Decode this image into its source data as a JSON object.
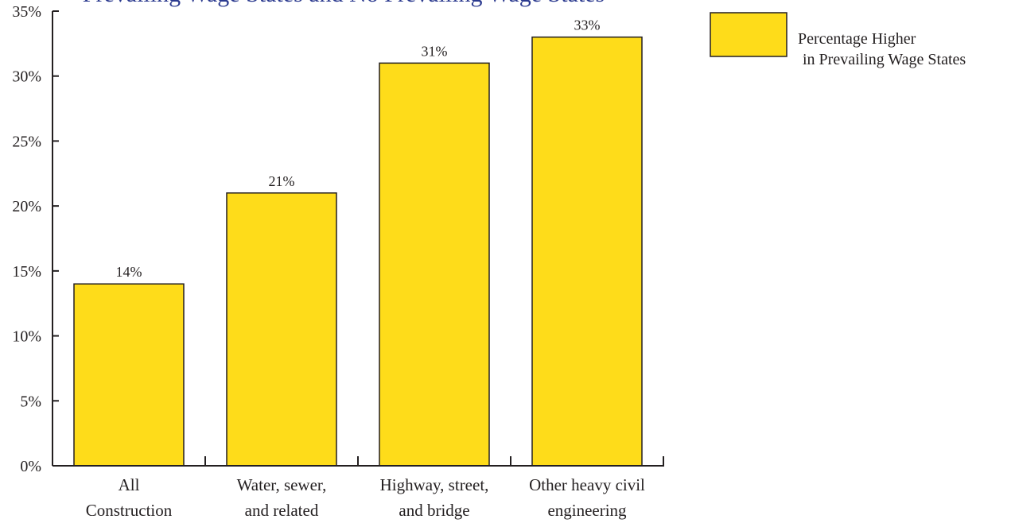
{
  "chart_data": {
    "type": "bar",
    "title": "Prevailing Wage States and No Prevailing Wage States",
    "categories": [
      [
        "All",
        "Construction"
      ],
      [
        "Water, sewer,",
        "and related"
      ],
      [
        "Highway, street,",
        "and bridge"
      ],
      [
        "Other heavy civil",
        "engineering"
      ]
    ],
    "series": [
      {
        "name": "Percentage Higher in Prevailing Wage States",
        "legend_lines": [
          "Percentage Higher",
          "in Prevailing Wage States"
        ],
        "values": [
          14,
          21,
          31,
          33
        ],
        "labels": [
          "14%",
          "21%",
          "31%",
          "33%"
        ],
        "color": "#fedc1a"
      }
    ],
    "ylim": [
      0,
      35
    ],
    "yticks": [
      0,
      5,
      10,
      15,
      20,
      25,
      30,
      35
    ],
    "ytick_labels": [
      "0%",
      "5%",
      "10%",
      "15%",
      "20%",
      "25%",
      "30%",
      "35%"
    ],
    "xlabel": "",
    "ylabel": "",
    "grid": false,
    "legend_position": "top-right"
  },
  "colors": {
    "title": "#2b3a8f",
    "bar_fill": "#fedc1a",
    "axis": "#231f20",
    "text": "#231f20"
  }
}
